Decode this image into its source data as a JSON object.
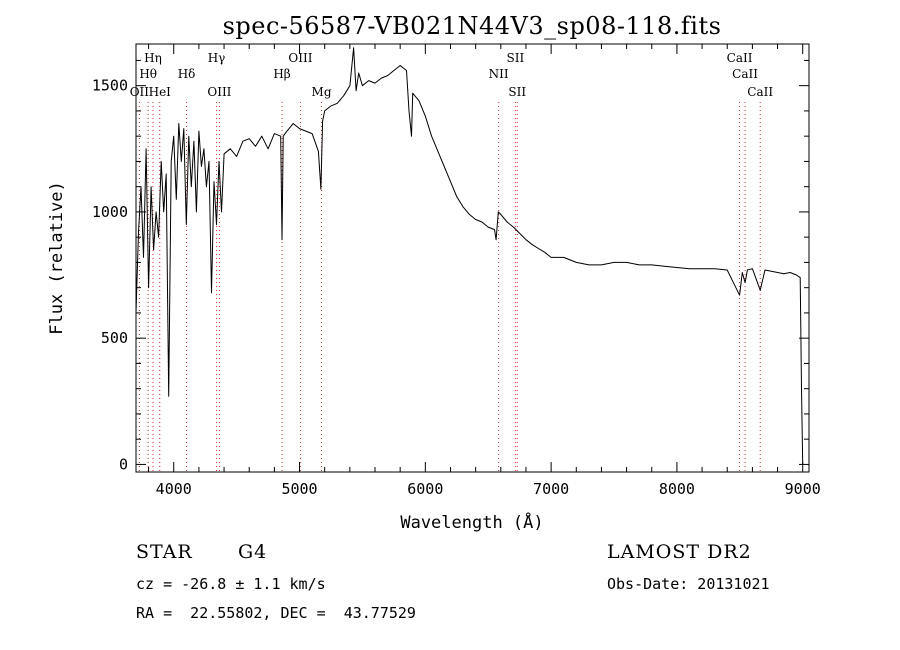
{
  "chart_data": {
    "type": "line",
    "title": "spec-56587-VB021N44V3_sp08-118.fits",
    "xlabel": "Wavelength (Å)",
    "ylabel": "Flux (relative)",
    "xlim": [
      3700,
      9050
    ],
    "ylim": [
      -30,
      1665
    ],
    "x_ticks": [
      4000,
      5000,
      6000,
      7000,
      8000,
      9000
    ],
    "y_ticks": [
      0,
      500,
      1000,
      1500
    ],
    "grid": false,
    "series": [
      {
        "x": [
          3700,
          3720,
          3740,
          3760,
          3780,
          3800,
          3820,
          3840,
          3860,
          3880,
          3900,
          3920,
          3940,
          3960,
          3980,
          4000,
          4020,
          4040,
          4060,
          4080,
          4100,
          4120,
          4140,
          4160,
          4180,
          4200,
          4220,
          4240,
          4260,
          4280,
          4300,
          4320,
          4340,
          4360,
          4380,
          4400,
          4450,
          4500,
          4550,
          4600,
          4650,
          4700,
          4750,
          4800,
          4850,
          4861,
          4870,
          4900,
          4950,
          5000,
          5050,
          5100,
          5150,
          5170,
          5183,
          5200,
          5250,
          5300,
          5350,
          5400,
          5430,
          5450,
          5470,
          5500,
          5550,
          5600,
          5650,
          5700,
          5750,
          5800,
          5850,
          5870,
          5890,
          5900,
          5950,
          6000,
          6050,
          6100,
          6150,
          6200,
          6250,
          6300,
          6350,
          6400,
          6450,
          6500,
          6550,
          6563,
          6580,
          6600,
          6650,
          6700,
          6750,
          6800,
          6850,
          6900,
          6950,
          7000,
          7100,
          7200,
          7300,
          7400,
          7500,
          7600,
          7700,
          7800,
          7900,
          8000,
          8100,
          8200,
          8300,
          8400,
          8498,
          8520,
          8542,
          8560,
          8600,
          8662,
          8700,
          8750,
          8800,
          8850,
          8900,
          8950,
          8980,
          8990,
          9000
        ],
        "y": [
          600,
          920,
          1100,
          820,
          1250,
          700,
          1100,
          850,
          1000,
          900,
          1200,
          1000,
          1150,
          270,
          1200,
          1300,
          1050,
          1350,
          1200,
          1330,
          950,
          1300,
          1100,
          1280,
          1000,
          1320,
          1180,
          1250,
          1100,
          1200,
          680,
          1120,
          950,
          1200,
          1000,
          1230,
          1250,
          1220,
          1280,
          1290,
          1260,
          1300,
          1250,
          1310,
          1300,
          890,
          1300,
          1320,
          1350,
          1330,
          1320,
          1310,
          1240,
          1090,
          1360,
          1400,
          1420,
          1430,
          1460,
          1500,
          1650,
          1480,
          1550,
          1500,
          1520,
          1510,
          1530,
          1540,
          1560,
          1580,
          1560,
          1400,
          1300,
          1470,
          1440,
          1380,
          1300,
          1240,
          1180,
          1120,
          1060,
          1020,
          990,
          970,
          960,
          940,
          930,
          890,
          1000,
          990,
          960,
          940,
          915,
          890,
          870,
          855,
          840,
          820,
          820,
          800,
          790,
          790,
          800,
          800,
          790,
          790,
          785,
          780,
          775,
          775,
          775,
          770,
          670,
          760,
          720,
          770,
          775,
          690,
          770,
          765,
          760,
          755,
          760,
          750,
          740,
          300,
          0
        ]
      }
    ],
    "line_markers": [
      {
        "label": "Hη",
        "x": 3835,
        "row": 0
      },
      {
        "label": "Hθ",
        "x": 3797,
        "row": 1
      },
      {
        "label": "OII",
        "x": 3727,
        "row": 2
      },
      {
        "label": "HeI",
        "x": 3889,
        "row": 2
      },
      {
        "label": "Hδ",
        "x": 4102,
        "row": 1
      },
      {
        "label": "Hγ",
        "x": 4340,
        "row": 0
      },
      {
        "label": "OIII",
        "x": 4363,
        "row": 2
      },
      {
        "label": "Hβ",
        "x": 4861,
        "row": 1
      },
      {
        "label": "OIII",
        "x": 5007,
        "row": 0
      },
      {
        "label": "Mg",
        "x": 5175,
        "row": 2
      },
      {
        "label": "NII",
        "x": 6583,
        "row": 1
      },
      {
        "label": "SII",
        "x": 6716,
        "row": 0
      },
      {
        "label": "SII",
        "x": 6731,
        "row": 2
      },
      {
        "label": "CaII",
        "x": 8498,
        "row": 0
      },
      {
        "label": "CaII",
        "x": 8542,
        "row": 1
      },
      {
        "label": "CaII",
        "x": 8662,
        "row": 2
      }
    ]
  },
  "info": {
    "object_class": "STAR",
    "subclass": "G4",
    "survey": "LAMOST DR2",
    "cz": "cz = -26.8 ± 1.1 km/s",
    "obs_date": "Obs-Date: 20131021",
    "coords": "RA =  22.55802, DEC =  43.77529"
  }
}
